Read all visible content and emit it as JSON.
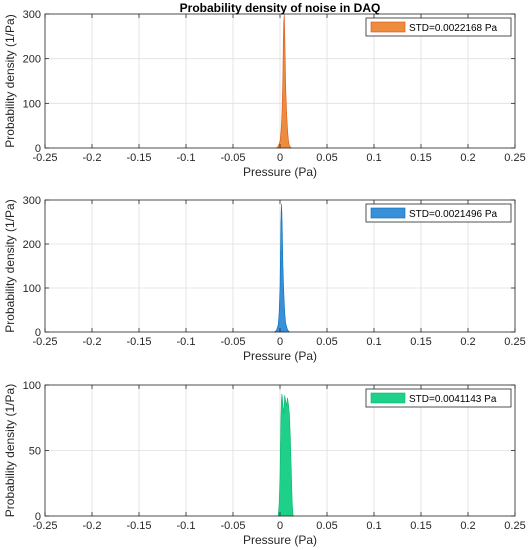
{
  "chart_data": [
    {
      "type": "area",
      "title": "Probability density of noise in DAQ",
      "xlabel": "Pressure (Pa)",
      "ylabel": "Probability density (1/Pa)",
      "xlim": [
        -0.25,
        0.25
      ],
      "ylim": [
        0,
        300
      ],
      "xticks": [
        -0.25,
        -0.2,
        -0.15,
        -0.1,
        -0.05,
        0,
        0.05,
        0.1,
        0.15,
        0.2,
        0.25
      ],
      "xtick_labels": [
        "-0.25",
        "-0.2",
        "-0.15",
        "-0.1",
        "-0.05",
        "0",
        "0.05",
        "0.1",
        "0.15",
        "0.2",
        "0.25"
      ],
      "yticks": [
        0,
        100,
        200,
        300
      ],
      "ytick_labels": [
        "0",
        "100",
        "200",
        "300"
      ],
      "grid": true,
      "legend": "top-right",
      "series": [
        {
          "name": "STD=0.0022168 Pa",
          "color": "#EE8C3D",
          "edge_color": "#D95319",
          "x": [
            -0.004,
            -0.002,
            0.0,
            0.001,
            0.002,
            0.003,
            0.0035,
            0.004,
            0.0045,
            0.005,
            0.0055,
            0.006,
            0.007,
            0.008,
            0.009,
            0.01,
            0.012
          ],
          "values": [
            0,
            3,
            15,
            35,
            70,
            150,
            240,
            280,
            300,
            265,
            200,
            140,
            80,
            40,
            15,
            5,
            0
          ]
        }
      ]
    },
    {
      "type": "area",
      "xlabel": "Pressure (Pa)",
      "ylabel": "Probability density (1/Pa)",
      "xlim": [
        -0.25,
        0.25
      ],
      "ylim": [
        0,
        300
      ],
      "xticks": [
        -0.25,
        -0.2,
        -0.15,
        -0.1,
        -0.05,
        0,
        0.05,
        0.1,
        0.15,
        0.2,
        0.25
      ],
      "xtick_labels": [
        "-0.25",
        "-0.2",
        "-0.15",
        "-0.1",
        "-0.05",
        "0",
        "0.05",
        "0.1",
        "0.15",
        "0.2",
        "0.25"
      ],
      "yticks": [
        0,
        100,
        200,
        300
      ],
      "ytick_labels": [
        "0",
        "100",
        "200",
        "300"
      ],
      "grid": true,
      "legend": "top-right",
      "series": [
        {
          "name": "STD=0.0021496 Pa",
          "color": "#3A8FD9",
          "edge_color": "#0072BD",
          "x": [
            -0.006,
            -0.004,
            -0.002,
            -0.001,
            0.0,
            0.0005,
            0.001,
            0.0015,
            0.002,
            0.0025,
            0.003,
            0.004,
            0.005,
            0.006,
            0.008,
            0.01
          ],
          "values": [
            0,
            3,
            15,
            40,
            100,
            180,
            250,
            290,
            270,
            220,
            160,
            90,
            45,
            20,
            5,
            0
          ]
        }
      ]
    },
    {
      "type": "area",
      "xlabel": "Pressure (Pa)",
      "ylabel": "Probability density (1/Pa)",
      "xlim": [
        -0.25,
        0.25
      ],
      "ylim": [
        0,
        100
      ],
      "xticks": [
        -0.25,
        -0.2,
        -0.15,
        -0.1,
        -0.05,
        0,
        0.05,
        0.1,
        0.15,
        0.2,
        0.25
      ],
      "xtick_labels": [
        "-0.25",
        "-0.2",
        "-0.15",
        "-0.1",
        "-0.05",
        "0",
        "0.05",
        "0.1",
        "0.15",
        "0.2",
        "0.25"
      ],
      "yticks": [
        0,
        50,
        100
      ],
      "ytick_labels": [
        "0",
        "50",
        "100"
      ],
      "grid": true,
      "legend": "top-right",
      "series": [
        {
          "name": "STD=0.0041143 Pa",
          "color": "#1FD08A",
          "edge_color": "#0DB86E",
          "x": [
            -0.002,
            -0.001,
            0.0,
            0.0005,
            0.001,
            0.0015,
            0.002,
            0.0025,
            0.003,
            0.004,
            0.005,
            0.006,
            0.007,
            0.008,
            0.009,
            0.01,
            0.011,
            0.012,
            0.013,
            0.014
          ],
          "values": [
            0,
            8,
            30,
            55,
            75,
            88,
            93,
            90,
            85,
            78,
            92,
            88,
            84,
            90,
            85,
            78,
            60,
            35,
            10,
            0
          ]
        }
      ]
    }
  ]
}
